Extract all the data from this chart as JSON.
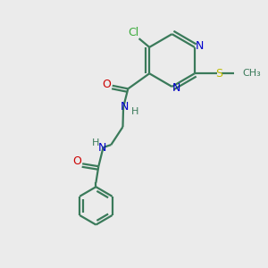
{
  "bg_color": "#ebebeb",
  "bond_color": "#3a7a5a",
  "nitrogen_color": "#0000cc",
  "oxygen_color": "#cc0000",
  "sulfur_color": "#bbbb00",
  "chlorine_color": "#3aaa3a",
  "line_width": 1.6,
  "fig_size": [
    3.0,
    3.0
  ],
  "dpi": 100,
  "xlim": [
    0,
    10
  ],
  "ylim": [
    0,
    10
  ]
}
